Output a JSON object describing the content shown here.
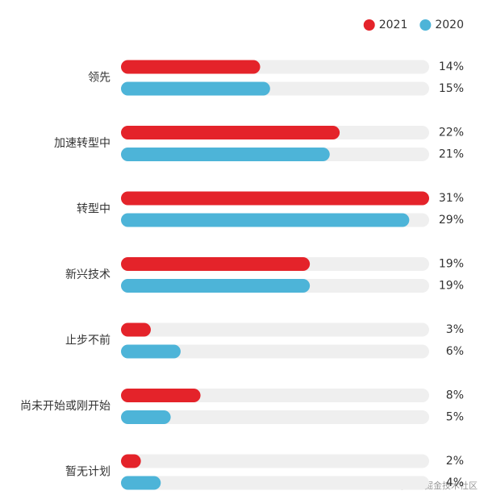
{
  "chart_data": {
    "type": "bar",
    "orientation": "horizontal",
    "categories": [
      "领先",
      "加速转型中",
      "转型中",
      "新兴技术",
      "止步不前",
      "尚未开始或刚开始",
      "暂无计划"
    ],
    "series": [
      {
        "name": "2021",
        "color": "#e4232a",
        "values": [
          14,
          22,
          31,
          19,
          3,
          8,
          2
        ],
        "value_labels": [
          "14%",
          "22%",
          "31%",
          "19%",
          "3%",
          "8%",
          "2%"
        ]
      },
      {
        "name": "2020",
        "color": "#4db4d8",
        "values": [
          15,
          21,
          29,
          19,
          6,
          5,
          4
        ],
        "value_labels": [
          "15%",
          "21%",
          "29%",
          "19%",
          "6%",
          "5%",
          "4%"
        ]
      }
    ],
    "xlim": [
      0,
      31
    ],
    "track_color": "#efefef",
    "legend": "top-right",
    "watermark": "@稀土掘金技术社区"
  }
}
